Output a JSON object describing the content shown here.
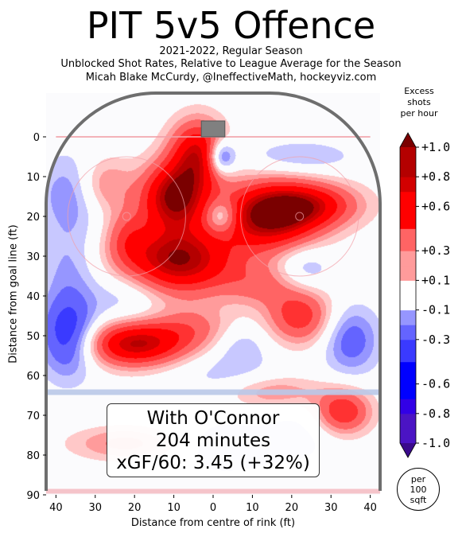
{
  "header": {
    "title": "PIT 5v5 Offence",
    "subtitle_lines": [
      "2021-2022, Regular Season",
      "Unblocked Shot Rates, Relative to League Average for the Season",
      "Micah Blake McCurdy, @IneffectiveMath, hockeyviz.com"
    ]
  },
  "chart_data": {
    "type": "heatmap",
    "xlabel": "Distance from centre of rink (ft)",
    "ylabel": "Distance from goal line (ft)",
    "xlim": [
      -42.5,
      42.5
    ],
    "ylim": [
      90,
      -11
    ],
    "x_ticks": [
      "40",
      "30",
      "20",
      "10",
      "0",
      "10",
      "20",
      "30",
      "40"
    ],
    "x_tick_values": [
      -40,
      -30,
      -20,
      -10,
      0,
      10,
      20,
      30,
      40
    ],
    "y_ticks": [
      "0",
      "10",
      "20",
      "30",
      "40",
      "50",
      "60",
      "70",
      "80",
      "90"
    ],
    "y_tick_values": [
      0,
      10,
      20,
      30,
      40,
      50,
      60,
      70,
      80,
      90
    ],
    "colorbar": {
      "title_lines": [
        "Excess",
        "shots",
        "per hour"
      ],
      "tick_labels": [
        "+1.0",
        "+0.8",
        "+0.6",
        "+0.3",
        "+0.1",
        "-0.1",
        "-0.3",
        "-0.6",
        "-0.8",
        "-1.0"
      ],
      "tick_values": [
        1.0,
        0.8,
        0.6,
        0.3,
        0.1,
        -0.1,
        -0.3,
        -0.6,
        -0.8,
        -1.0
      ],
      "range": [
        -1.0,
        1.0
      ],
      "unit_lines": [
        "per",
        "100",
        "sqft"
      ]
    },
    "blobs": [
      {
        "x": -10,
        "y": 15,
        "value": 1.0,
        "sx": 6,
        "sy": 6
      },
      {
        "x": -9,
        "y": 31,
        "value": 1.0,
        "sx": 10,
        "sy": 6
      },
      {
        "x": -4,
        "y": 4,
        "value": 0.8,
        "sx": 5,
        "sy": 6
      },
      {
        "x": 14,
        "y": 20,
        "value": 1.0,
        "sx": 9,
        "sy": 6
      },
      {
        "x": 25,
        "y": 17,
        "value": 0.6,
        "sx": 9,
        "sy": 4
      },
      {
        "x": -20,
        "y": 52,
        "value": 0.9,
        "sx": 9,
        "sy": 4
      },
      {
        "x": -28,
        "y": 12,
        "value": 0.35,
        "sx": 5,
        "sy": 5
      },
      {
        "x": -22,
        "y": 25,
        "value": 0.3,
        "sx": 4,
        "sy": 5
      },
      {
        "x": 22,
        "y": 45,
        "value": 0.55,
        "sx": 6,
        "sy": 5
      },
      {
        "x": 12,
        "y": 37,
        "value": 0.3,
        "sx": 7,
        "sy": 4
      },
      {
        "x": 33,
        "y": 69,
        "value": 0.6,
        "sx": 5,
        "sy": 4
      },
      {
        "x": -22,
        "y": 77,
        "value": 0.35,
        "sx": 10,
        "sy": 3
      },
      {
        "x": -5,
        "y": 48,
        "value": 0.3,
        "sx": 8,
        "sy": 4
      },
      {
        "x": 15,
        "y": 64,
        "value": 0.3,
        "sx": 9,
        "sy": 3
      },
      {
        "x": 2,
        "y": 5,
        "value": -0.6,
        "sx": 2.5,
        "sy": 3
      },
      {
        "x": 2,
        "y": 20,
        "value": -0.45,
        "sx": 3,
        "sy": 3
      },
      {
        "x": -37,
        "y": 50,
        "value": -0.6,
        "sx": 5,
        "sy": 7
      },
      {
        "x": -36,
        "y": 14,
        "value": -0.3,
        "sx": 6,
        "sy": 7
      },
      {
        "x": 35,
        "y": 51,
        "value": -0.4,
        "sx": 5,
        "sy": 6
      },
      {
        "x": 23,
        "y": 33,
        "value": -0.25,
        "sx": 5,
        "sy": 4
      },
      {
        "x": -37,
        "y": 33,
        "value": -0.2,
        "sx": 5,
        "sy": 8
      },
      {
        "x": 22,
        "y": 5,
        "value": -0.2,
        "sx": 10,
        "sy": 3
      },
      {
        "x": -22,
        "y": 40,
        "value": -0.2,
        "sx": 7,
        "sy": 5
      },
      {
        "x": 7,
        "y": 52,
        "value": -0.2,
        "sx": 5,
        "sy": 4
      },
      {
        "x": 3,
        "y": 60,
        "value": -0.15,
        "sx": 10,
        "sy": 4
      },
      {
        "x": 3,
        "y": 78,
        "value": -0.2,
        "sx": 10,
        "sy": 5
      },
      {
        "x": 22,
        "y": 75,
        "value": -0.15,
        "sx": 6,
        "sy": 5
      }
    ],
    "annotation": {
      "lines": [
        "With O'Connor",
        "204 minutes",
        "xGF/60: 3.45 (+32%)"
      ]
    }
  },
  "colors": {
    "rink_border": "#6e6e6e",
    "goal": "#808080",
    "blue_line": "#b9c8e8",
    "goal_line": "#f2a0a8",
    "circle": "#f2a0a8",
    "colorbar_stops": [
      {
        "v": -1.0,
        "c": "#3a0a8c"
      },
      {
        "v": -0.9,
        "c": "#4b14c4"
      },
      {
        "v": -0.8,
        "c": "#3200e6"
      },
      {
        "v": -0.6,
        "c": "#0000ff"
      },
      {
        "v": -0.45,
        "c": "#3a3aff"
      },
      {
        "v": -0.3,
        "c": "#6464ff"
      },
      {
        "v": -0.2,
        "c": "#9696ff"
      },
      {
        "v": -0.1,
        "c": "#c8c8ff"
      },
      {
        "v": 0.0,
        "c": "#ffffff"
      },
      {
        "v": 0.1,
        "c": "#ffc8c8"
      },
      {
        "v": 0.2,
        "c": "#ff9b9b"
      },
      {
        "v": 0.3,
        "c": "#ff6464"
      },
      {
        "v": 0.45,
        "c": "#ff3232"
      },
      {
        "v": 0.6,
        "c": "#ff0000"
      },
      {
        "v": 0.8,
        "c": "#d20000"
      },
      {
        "v": 0.9,
        "c": "#b40000"
      },
      {
        "v": 1.0,
        "c": "#7a0000"
      }
    ]
  }
}
